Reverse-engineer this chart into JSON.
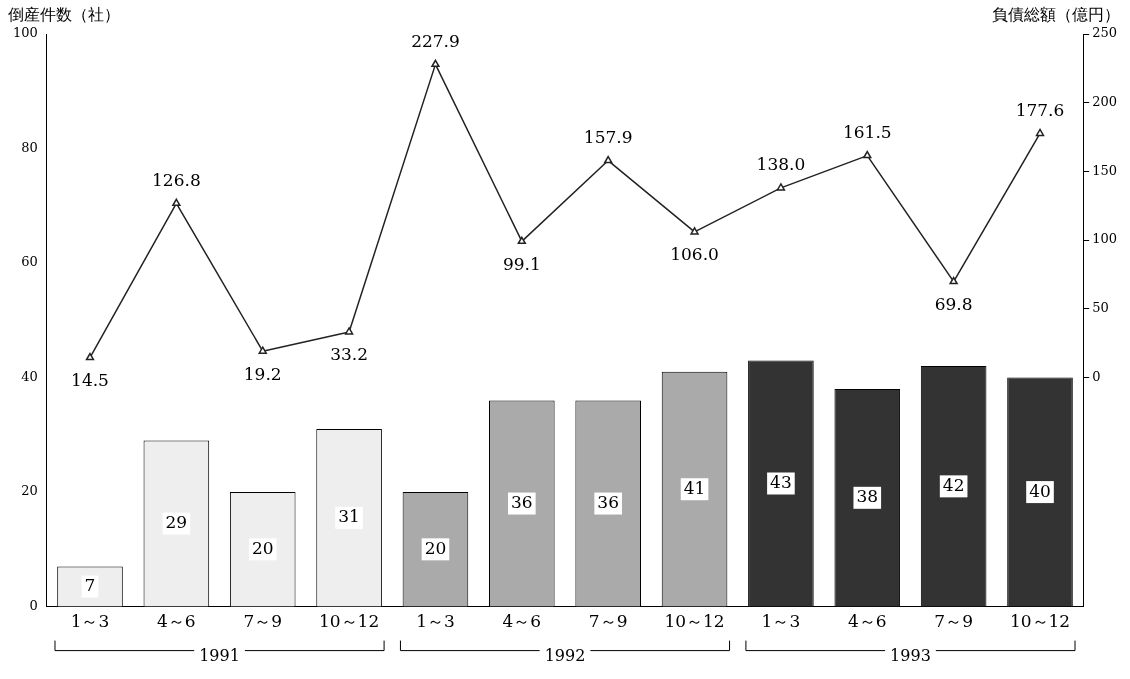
{
  "chart_data": {
    "type": "bar",
    "ylabel": "倒産件数（社）",
    "y2label": "負債総額（億円）",
    "categories": [
      "1～3",
      "4～6",
      "7～9",
      "10～12",
      "1～3",
      "4～6",
      "7～9",
      "10～12",
      "1～3",
      "4～6",
      "7～9",
      "10～12"
    ],
    "series": [
      {
        "colors": [
          "#eeeeee",
          "#eeeeee",
          "#eeeeee",
          "#eeeeee",
          "#aaaaaa",
          "#aaaaaa",
          "#aaaaaa",
          "#aaaaaa",
          "#333333",
          "#333333",
          "#333333",
          "#333333"
        ],
        "values": [
          7,
          29,
          20,
          31,
          20,
          36,
          36,
          41,
          43,
          38,
          42,
          40
        ],
        "value_labels": [
          "7",
          "29",
          "20",
          "31",
          "20",
          "36",
          "36",
          "41",
          "43",
          "38",
          "42",
          "40"
        ]
      },
      {
        "type": "line",
        "axis": "y2",
        "color": "#222222",
        "values": [
          14.5,
          126.8,
          19.2,
          33.2,
          227.9,
          99.1,
          157.9,
          106.0,
          138.0,
          161.5,
          69.8,
          177.6
        ],
        "value_labels": [
          "14.5",
          "126.8",
          "19.2",
          "33.2",
          "227.9",
          "99.1",
          "157.9",
          "106.0",
          "138.0",
          "161.5",
          "69.8",
          "177.6"
        ]
      }
    ],
    "ylim": [
      0,
      100
    ],
    "yticks": [
      0,
      20,
      40,
      60,
      80,
      100
    ],
    "y2lim": [
      -166.7,
      250
    ],
    "y2ticks": [
      0,
      50,
      100,
      150,
      200,
      250
    ],
    "marker": "triangle",
    "grid": false,
    "legend": false,
    "annotations": [
      "1991",
      "1992",
      "1993"
    ]
  }
}
